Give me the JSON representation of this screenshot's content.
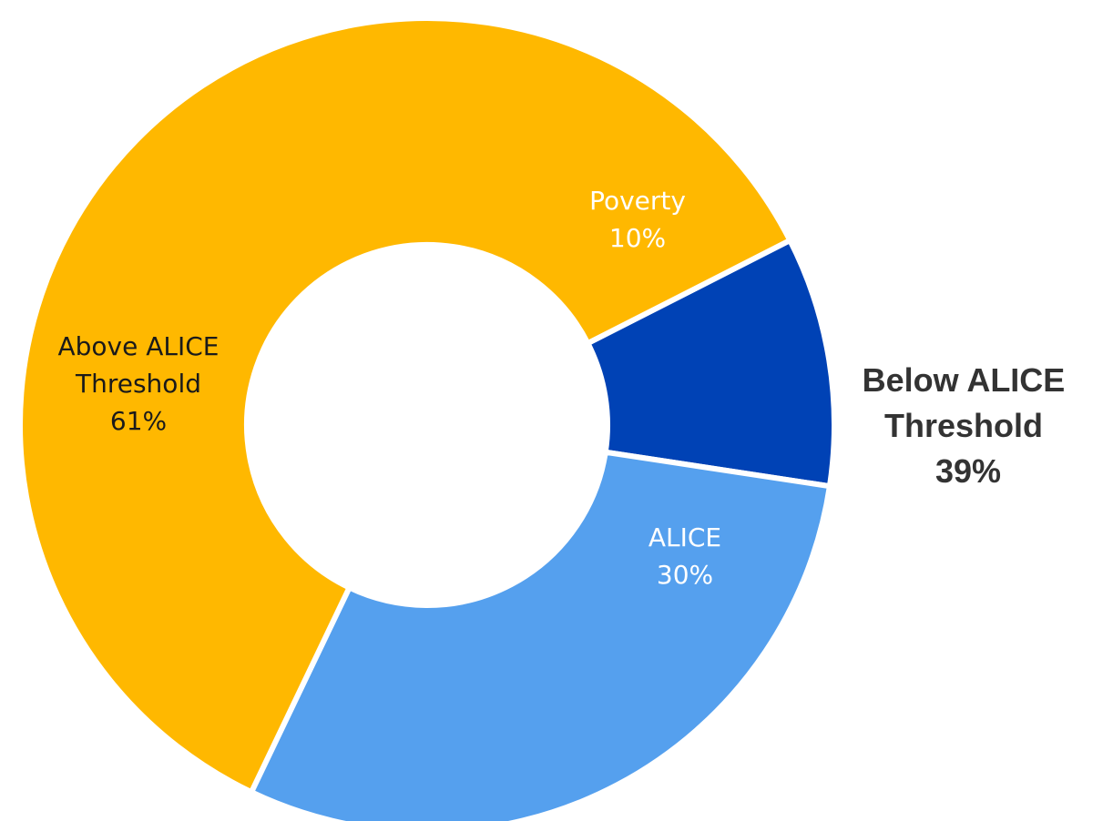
{
  "chart_data": {
    "type": "pie",
    "donut": true,
    "title": "",
    "slices": [
      {
        "label": "Poverty",
        "value": 10,
        "value_label": "10%",
        "color": "#0042B5",
        "text_color": "#FFFFFF"
      },
      {
        "label": "ALICE",
        "value": 30,
        "value_label": "30%",
        "color": "#55A0EE",
        "text_color": "#FFFFFF"
      },
      {
        "label": "Above ALICE Threshold",
        "label_lines": [
          "Above ALICE",
          "Threshold"
        ],
        "value": 61,
        "value_label": "61%",
        "color": "#FFB800",
        "text_color": "#1A1A1A"
      }
    ],
    "group_annotation": {
      "lines": [
        "Below ALICE",
        "Threshold",
        "39%"
      ],
      "covers": [
        "Poverty",
        "ALICE"
      ]
    },
    "legend": "none",
    "grid": false
  }
}
